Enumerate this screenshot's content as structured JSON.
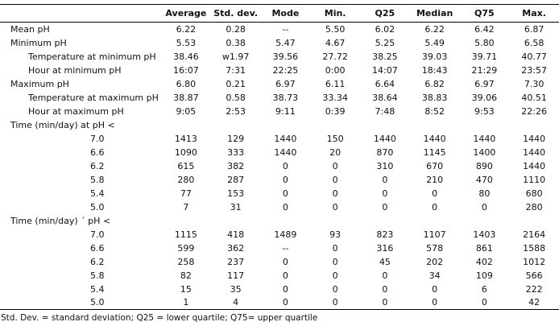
{
  "table": {
    "columns": [
      "Average",
      "Std. dev.",
      "Mode",
      "Min.",
      "Q25",
      "Median",
      "Q75",
      "Max."
    ],
    "rows": [
      {
        "label": "Mean pH",
        "indent": 0,
        "values": [
          "6.22",
          "0.28",
          "--",
          "5.50",
          "6.02",
          "6.22",
          "6.42",
          "6.87"
        ]
      },
      {
        "label": "Minimum pH",
        "indent": 0,
        "values": [
          "5.53",
          "0.38",
          "5.47",
          "4.67",
          "5.25",
          "5.49",
          "5.80",
          "6.58"
        ]
      },
      {
        "label": "Temperature at minimum pH",
        "indent": 1,
        "values": [
          "38.46",
          "w1.97",
          "39.56",
          "27.72",
          "38.25",
          "39.03",
          "39.71",
          "40.77"
        ]
      },
      {
        "label": "Hour at minimum pH",
        "indent": 1,
        "values": [
          "16:07",
          "7:31",
          "22:25",
          "0:00",
          "14:07",
          "18:43",
          "21:29",
          "23:57"
        ]
      },
      {
        "label": "Maximum pH",
        "indent": 0,
        "values": [
          "6.80",
          "0.21",
          "6.97",
          "6.11",
          "6.64",
          "6.82",
          "6.97",
          "7.30"
        ]
      },
      {
        "label": "Temperature at maximum pH",
        "indent": 1,
        "values": [
          "38.87",
          "0.58",
          "38.73",
          "33.34",
          "38.64",
          "38.83",
          "39.06",
          "40.51"
        ]
      },
      {
        "label": "Hour at maximum pH",
        "indent": 1,
        "values": [
          "9:05",
          "2:53",
          "9:11",
          "0:39",
          "7:48",
          "8:52",
          "9:53",
          "22:26"
        ]
      },
      {
        "label": "Time (min/day) at pH <",
        "indent": 0,
        "values": [
          "",
          "",
          "",
          "",
          "",
          "",
          "",
          ""
        ]
      },
      {
        "label": "7.0",
        "indent": 2,
        "values": [
          "1413",
          "129",
          "1440",
          "150",
          "1440",
          "1440",
          "1440",
          "1440"
        ]
      },
      {
        "label": "6.6",
        "indent": 2,
        "values": [
          "1090",
          "333",
          "1440",
          "20",
          "870",
          "1145",
          "1400",
          "1440"
        ]
      },
      {
        "label": "6.2",
        "indent": 2,
        "values": [
          "615",
          "382",
          "0",
          "0",
          "310",
          "670",
          "890",
          "1440"
        ]
      },
      {
        "label": "5.8",
        "indent": 2,
        "values": [
          "280",
          "287",
          "0",
          "0",
          "0",
          "210",
          "470",
          "1110"
        ]
      },
      {
        "label": "5.4",
        "indent": 2,
        "values": [
          "77",
          "153",
          "0",
          "0",
          "0",
          "0",
          "80",
          "680"
        ]
      },
      {
        "label": "5.0",
        "indent": 2,
        "values": [
          "7",
          "31",
          "0",
          "0",
          "0",
          "0",
          "0",
          "280"
        ]
      },
      {
        "label": "Time (min/day) ´ pH <",
        "indent": 0,
        "values": [
          "",
          "",
          "",
          "",
          "",
          "",
          "",
          ""
        ]
      },
      {
        "label": "7.0",
        "indent": 2,
        "values": [
          "1115",
          "418",
          "1489",
          "93",
          "823",
          "1107",
          "1403",
          "2164"
        ]
      },
      {
        "label": "6.6",
        "indent": 2,
        "values": [
          "599",
          "362",
          "--",
          "0",
          "316",
          "578",
          "861",
          "1588"
        ]
      },
      {
        "label": "6.2",
        "indent": 2,
        "values": [
          "258",
          "237",
          "0",
          "0",
          "45",
          "202",
          "402",
          "1012"
        ]
      },
      {
        "label": "5.8",
        "indent": 2,
        "values": [
          "82",
          "117",
          "0",
          "0",
          "0",
          "34",
          "109",
          "566"
        ]
      },
      {
        "label": "5.4",
        "indent": 2,
        "values": [
          "15",
          "35",
          "0",
          "0",
          "0",
          "0",
          "6",
          "222"
        ]
      },
      {
        "label": "5.0",
        "indent": 2,
        "values": [
          "1",
          "4",
          "0",
          "0",
          "0",
          "0",
          "0",
          "42"
        ]
      }
    ],
    "footnote": "Std. Dev. = standard deviation; Q25 = lower quartile; Q75= upper quartile",
    "colors": {
      "text": "#111111",
      "rule": "#000000",
      "background": "#ffffff"
    }
  }
}
